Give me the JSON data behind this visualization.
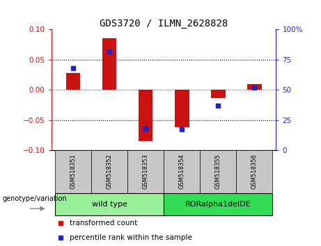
{
  "title": "GDS3720 / ILMN_2628828",
  "categories": [
    "GSM518351",
    "GSM518352",
    "GSM518353",
    "GSM518354",
    "GSM518355",
    "GSM518356"
  ],
  "red_values": [
    0.028,
    0.085,
    -0.085,
    -0.062,
    -0.014,
    0.01
  ],
  "blue_values": [
    68,
    82,
    18,
    17,
    37,
    52
  ],
  "left_ylim": [
    -0.1,
    0.1
  ],
  "right_ylim": [
    0,
    100
  ],
  "left_yticks": [
    -0.1,
    -0.05,
    0,
    0.05,
    0.1
  ],
  "right_yticks": [
    0,
    25,
    50,
    75,
    100
  ],
  "right_yticklabels": [
    "0",
    "25",
    "50",
    "75",
    "100%"
  ],
  "dotted_lines_black": [
    -0.05,
    0.05
  ],
  "dotted_line_red": 0.0,
  "groups": [
    {
      "label": "wild type",
      "indices": [
        0,
        1,
        2
      ],
      "color": "#99EE99"
    },
    {
      "label": "RORalpha1delDE",
      "indices": [
        3,
        4,
        5
      ],
      "color": "#33DD55"
    }
  ],
  "legend": [
    {
      "label": "transformed count",
      "color": "#CC1111"
    },
    {
      "label": "percentile rank within the sample",
      "color": "#2222CC"
    }
  ],
  "genotype_label": "genotype/variation",
  "bar_width": 0.4,
  "blue_marker_size": 5,
  "red_color": "#CC1111",
  "blue_color": "#2222CC",
  "figsize": [
    4.61,
    3.54
  ],
  "dpi": 100
}
